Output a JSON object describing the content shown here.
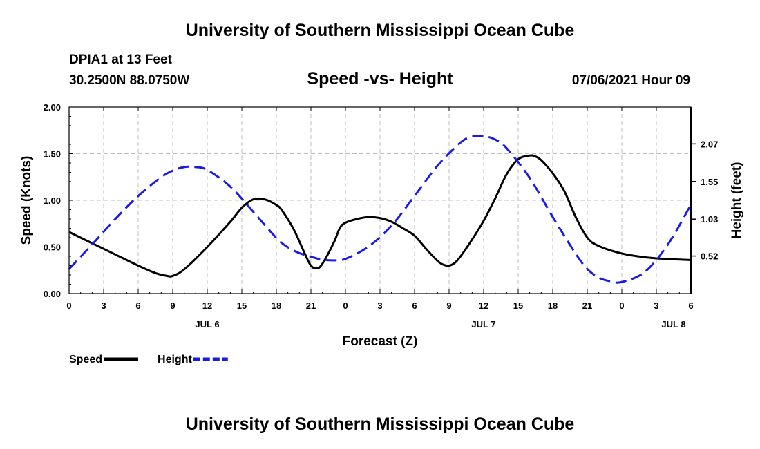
{
  "header": {
    "top_title": "University of Southern Mississippi Ocean Cube",
    "station": "DPIA1 at 13 Feet",
    "coordinates": "30.2500N  88.0750W",
    "timestamp": "07/06/2021 Hour 09",
    "bottom_title": "University of Southern Mississippi Ocean Cube"
  },
  "chart_data": {
    "type": "line",
    "title": "Speed -vs- Height",
    "xlabel": "Forecast (Z)",
    "ylabel": "Speed (Knots)",
    "y2label": "Height (feet)",
    "xlim": [
      0,
      54
    ],
    "ylim": [
      0,
      2
    ],
    "y2lim": [
      0.0,
      2.58
    ],
    "x_ticks": [
      0,
      3,
      6,
      9,
      12,
      15,
      18,
      21,
      24,
      27,
      30,
      33,
      36,
      39,
      42,
      45,
      48,
      51,
      54
    ],
    "x_tick_labels": [
      "0",
      "3",
      "6",
      "9",
      "12",
      "15",
      "18",
      "21",
      "0",
      "3",
      "6",
      "9",
      "12",
      "15",
      "18",
      "21",
      "0",
      "3",
      "6"
    ],
    "date_labels": [
      {
        "x": 12,
        "label": "JUL 6"
      },
      {
        "x": 36,
        "label": "JUL 7"
      },
      {
        "x": 52.5,
        "label": "JUL 8"
      }
    ],
    "y_ticks": [
      0.0,
      0.5,
      1.0,
      1.5,
      2.0
    ],
    "y_tick_labels": [
      "0.00",
      "0.50",
      "1.00",
      "1.50",
      "2.00"
    ],
    "y2_ticks": [
      0.52,
      1.03,
      1.55,
      2.07
    ],
    "y2_tick_labels": [
      "0.52",
      "1.03",
      "1.55",
      "2.07"
    ],
    "grid": true,
    "legend_position": "bottom-left",
    "series": [
      {
        "name": "Speed",
        "axis": "left",
        "color": "#000000",
        "dash": "solid",
        "x": [
          0,
          2,
          4,
          6,
          7.5,
          8.5,
          9,
          10,
          12,
          14,
          15,
          16,
          17,
          18,
          18.5,
          19.5,
          20.5,
          21,
          21.5,
          22,
          23,
          23.5,
          24,
          25,
          26,
          27,
          28,
          29,
          30,
          31,
          32,
          32.5,
          33,
          33.5,
          34,
          35,
          36,
          37,
          38,
          39,
          40,
          40.5,
          41,
          42,
          43,
          44,
          45,
          46,
          48,
          50,
          52,
          54
        ],
        "values": [
          0.66,
          0.54,
          0.42,
          0.3,
          0.22,
          0.19,
          0.19,
          0.26,
          0.5,
          0.77,
          0.92,
          1.01,
          1.01,
          0.95,
          0.89,
          0.69,
          0.42,
          0.3,
          0.27,
          0.32,
          0.55,
          0.7,
          0.76,
          0.8,
          0.82,
          0.81,
          0.77,
          0.7,
          0.62,
          0.48,
          0.35,
          0.31,
          0.3,
          0.33,
          0.4,
          0.58,
          0.78,
          1.02,
          1.28,
          1.44,
          1.48,
          1.47,
          1.43,
          1.29,
          1.1,
          0.82,
          0.6,
          0.51,
          0.43,
          0.39,
          0.37,
          0.36
        ]
      },
      {
        "name": "Height",
        "axis": "right",
        "color": "#1a1ae6",
        "dash": "dashed",
        "x": [
          0,
          2,
          4,
          6,
          8,
          9,
          10,
          11,
          12,
          14,
          16,
          18,
          19,
          20,
          21,
          22,
          23,
          24,
          26,
          28,
          30,
          32,
          34,
          35,
          36,
          37,
          38,
          40,
          42,
          44,
          45,
          46,
          47,
          48,
          50,
          52,
          54
        ],
        "values": [
          0.34,
          0.68,
          1.03,
          1.35,
          1.61,
          1.7,
          1.75,
          1.75,
          1.71,
          1.48,
          1.13,
          0.77,
          0.64,
          0.56,
          0.51,
          0.47,
          0.46,
          0.48,
          0.65,
          0.94,
          1.35,
          1.77,
          2.09,
          2.17,
          2.18,
          2.13,
          2.01,
          1.6,
          1.06,
          0.55,
          0.34,
          0.22,
          0.17,
          0.16,
          0.3,
          0.68,
          1.23
        ]
      }
    ]
  }
}
